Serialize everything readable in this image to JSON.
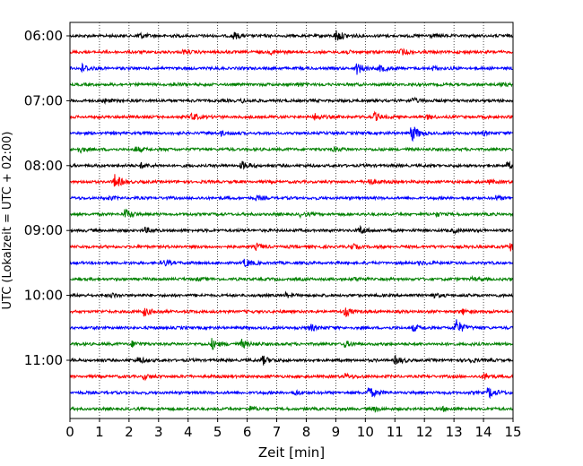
{
  "chart_data": {
    "type": "line",
    "title": "",
    "xlabel": "Zeit  [min]",
    "ylabel": "UTC (Lokalzeit = UTC + 02:00)",
    "xlim": [
      0,
      15
    ],
    "x_ticks": [
      0,
      1,
      2,
      3,
      4,
      5,
      6,
      7,
      8,
      9,
      10,
      11,
      12,
      13,
      14,
      15
    ],
    "y_tick_labels": [
      "06:00",
      "07:00",
      "08:00",
      "09:00",
      "10:00",
      "11:00"
    ],
    "y_tick_trace_index": [
      0,
      4,
      8,
      12,
      16,
      20
    ],
    "grid_x": true,
    "trace_colors": [
      "#000000",
      "#ff0000",
      "#0000ff",
      "#008000"
    ],
    "traces": [
      {
        "start": "06:00",
        "events": [
          {
            "t": 2.3,
            "a": 0.35
          },
          {
            "t": 5.5,
            "a": 0.4
          },
          {
            "t": 9.0,
            "a": 0.75
          },
          {
            "t": 12.1,
            "a": 0.2
          }
        ]
      },
      {
        "start": "06:15",
        "events": [
          {
            "t": 3.8,
            "a": 0.2
          },
          {
            "t": 6.8,
            "a": 0.2
          },
          {
            "t": 9.2,
            "a": 0.25
          },
          {
            "t": 11.2,
            "a": 0.3
          }
        ]
      },
      {
        "start": "06:30",
        "events": [
          {
            "t": 0.35,
            "a": 0.6
          },
          {
            "t": 9.7,
            "a": 0.65
          },
          {
            "t": 10.5,
            "a": 0.4
          },
          {
            "t": 12.3,
            "a": 0.2
          }
        ]
      },
      {
        "start": "06:45",
        "events": [
          {
            "t": 3.5,
            "a": 0.15
          },
          {
            "t": 7.7,
            "a": 0.15
          },
          {
            "t": 14.5,
            "a": 0.15
          }
        ]
      },
      {
        "start": "07:00",
        "events": [
          {
            "t": 1.1,
            "a": 0.2
          },
          {
            "t": 5.8,
            "a": 0.2
          },
          {
            "t": 11.6,
            "a": 0.3
          }
        ]
      },
      {
        "start": "07:15",
        "events": [
          {
            "t": 4.1,
            "a": 0.45
          },
          {
            "t": 8.3,
            "a": 0.4
          },
          {
            "t": 10.3,
            "a": 0.45
          },
          {
            "t": 12.1,
            "a": 0.2
          }
        ]
      },
      {
        "start": "07:30",
        "events": [
          {
            "t": 5.1,
            "a": 0.25
          },
          {
            "t": 11.55,
            "a": 1.0
          },
          {
            "t": 14.0,
            "a": 0.2
          }
        ]
      },
      {
        "start": "07:45",
        "events": [
          {
            "t": 0.3,
            "a": 0.3
          },
          {
            "t": 2.2,
            "a": 0.3
          },
          {
            "t": 8.9,
            "a": 0.25
          }
        ]
      },
      {
        "start": "08:00",
        "events": [
          {
            "t": 2.4,
            "a": 0.3
          },
          {
            "t": 5.8,
            "a": 0.45
          },
          {
            "t": 14.8,
            "a": 0.35
          }
        ]
      },
      {
        "start": "08:15",
        "events": [
          {
            "t": 1.5,
            "a": 0.8
          },
          {
            "t": 10.1,
            "a": 0.4
          },
          {
            "t": 14.2,
            "a": 0.2
          }
        ]
      },
      {
        "start": "08:30",
        "events": [
          {
            "t": 1.3,
            "a": 0.15
          },
          {
            "t": 6.3,
            "a": 0.2
          },
          {
            "t": 14.4,
            "a": 0.2
          }
        ]
      },
      {
        "start": "08:45",
        "events": [
          {
            "t": 1.85,
            "a": 0.55
          },
          {
            "t": 7.8,
            "a": 0.2
          },
          {
            "t": 12.4,
            "a": 0.2
          }
        ]
      },
      {
        "start": "09:00",
        "events": [
          {
            "t": 2.5,
            "a": 0.3
          },
          {
            "t": 9.8,
            "a": 0.45
          },
          {
            "t": 13.0,
            "a": 0.2
          }
        ]
      },
      {
        "start": "09:15",
        "events": [
          {
            "t": 6.3,
            "a": 0.3
          },
          {
            "t": 9.5,
            "a": 0.3
          },
          {
            "t": 14.9,
            "a": 0.45
          }
        ]
      },
      {
        "start": "09:30",
        "events": [
          {
            "t": 3.2,
            "a": 0.3
          },
          {
            "t": 5.9,
            "a": 0.45
          },
          {
            "t": 11.8,
            "a": 0.2
          }
        ]
      },
      {
        "start": "09:45",
        "events": [
          {
            "t": 4.3,
            "a": 0.15
          },
          {
            "t": 9.6,
            "a": 0.15
          },
          {
            "t": 13.6,
            "a": 0.15
          }
        ]
      },
      {
        "start": "10:00",
        "events": [
          {
            "t": 1.4,
            "a": 0.2
          },
          {
            "t": 7.3,
            "a": 0.2
          },
          {
            "t": 12.2,
            "a": 0.3
          }
        ]
      },
      {
        "start": "10:15",
        "events": [
          {
            "t": 2.5,
            "a": 0.5
          },
          {
            "t": 9.3,
            "a": 0.5
          },
          {
            "t": 13.3,
            "a": 0.25
          }
        ]
      },
      {
        "start": "10:30",
        "events": [
          {
            "t": 8.1,
            "a": 0.45
          },
          {
            "t": 11.6,
            "a": 0.35
          },
          {
            "t": 13.05,
            "a": 1.0
          }
        ]
      },
      {
        "start": "10:45",
        "events": [
          {
            "t": 2.1,
            "a": 0.3
          },
          {
            "t": 4.8,
            "a": 0.6
          },
          {
            "t": 5.8,
            "a": 0.5
          },
          {
            "t": 9.3,
            "a": 0.3
          }
        ]
      },
      {
        "start": "11:00",
        "events": [
          {
            "t": 2.3,
            "a": 0.35
          },
          {
            "t": 6.5,
            "a": 0.55
          },
          {
            "t": 11.0,
            "a": 0.45
          },
          {
            "t": 13.5,
            "a": 0.3
          }
        ]
      },
      {
        "start": "11:15",
        "events": [
          {
            "t": 2.5,
            "a": 0.25
          },
          {
            "t": 9.3,
            "a": 0.3
          },
          {
            "t": 14.0,
            "a": 0.4
          }
        ]
      },
      {
        "start": "11:30",
        "events": [
          {
            "t": 7.6,
            "a": 0.25
          },
          {
            "t": 10.1,
            "a": 0.7
          },
          {
            "t": 14.15,
            "a": 0.75
          }
        ]
      },
      {
        "start": "11:45",
        "events": [
          {
            "t": 6.1,
            "a": 0.2
          },
          {
            "t": 10.3,
            "a": 0.2
          },
          {
            "t": 12.6,
            "a": 0.2
          }
        ]
      }
    ]
  }
}
